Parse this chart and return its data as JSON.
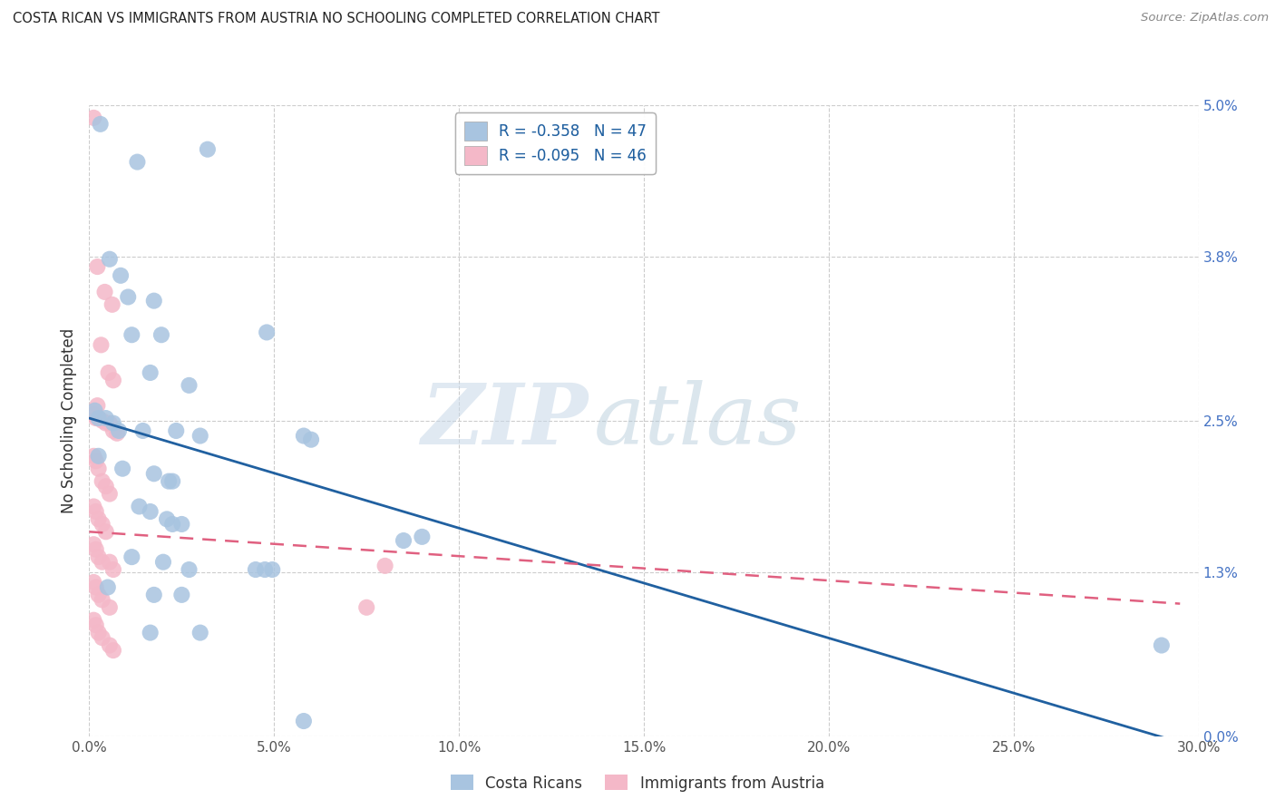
{
  "title": "COSTA RICAN VS IMMIGRANTS FROM AUSTRIA NO SCHOOLING COMPLETED CORRELATION CHART",
  "source": "Source: ZipAtlas.com",
  "ylabel": "No Schooling Completed",
  "xlabel_vals": [
    0.0,
    5.0,
    10.0,
    15.0,
    20.0,
    25.0,
    30.0
  ],
  "ylabel_vals": [
    0.0,
    1.3,
    2.5,
    3.8,
    5.0
  ],
  "xlim": [
    0.0,
    30.0
  ],
  "ylim": [
    0.0,
    5.0
  ],
  "blue_R": "-0.358",
  "blue_N": "47",
  "pink_R": "-0.095",
  "pink_N": "46",
  "blue_color": "#a8c4e0",
  "pink_color": "#f4b8c8",
  "blue_line_color": "#2060a0",
  "pink_line_color": "#e06080",
  "watermark_zip": "ZIP",
  "watermark_atlas": "atlas",
  "background_color": "#ffffff",
  "legend_label_blue": "Costa Ricans",
  "legend_label_pink": "Immigrants from Austria",
  "blue_line": [
    [
      0.0,
      2.52
    ],
    [
      29.5,
      -0.05
    ]
  ],
  "pink_line": [
    [
      0.0,
      1.62
    ],
    [
      29.5,
      1.05
    ]
  ],
  "blue_scatter": [
    [
      0.3,
      4.85
    ],
    [
      1.3,
      4.55
    ],
    [
      3.2,
      4.65
    ],
    [
      0.55,
      3.78
    ],
    [
      0.85,
      3.65
    ],
    [
      1.05,
      3.48
    ],
    [
      1.75,
      3.45
    ],
    [
      1.15,
      3.18
    ],
    [
      1.95,
      3.18
    ],
    [
      4.8,
      3.2
    ],
    [
      1.65,
      2.88
    ],
    [
      2.7,
      2.78
    ],
    [
      0.15,
      2.58
    ],
    [
      0.25,
      2.52
    ],
    [
      0.45,
      2.52
    ],
    [
      0.65,
      2.48
    ],
    [
      0.8,
      2.42
    ],
    [
      1.45,
      2.42
    ],
    [
      2.35,
      2.42
    ],
    [
      3.0,
      2.38
    ],
    [
      5.8,
      2.38
    ],
    [
      0.25,
      2.22
    ],
    [
      0.9,
      2.12
    ],
    [
      1.75,
      2.08
    ],
    [
      2.15,
      2.02
    ],
    [
      2.25,
      2.02
    ],
    [
      1.35,
      1.82
    ],
    [
      1.65,
      1.78
    ],
    [
      2.1,
      1.72
    ],
    [
      2.25,
      1.68
    ],
    [
      2.5,
      1.68
    ],
    [
      4.5,
      1.32
    ],
    [
      4.75,
      1.32
    ],
    [
      4.95,
      1.32
    ],
    [
      1.15,
      1.42
    ],
    [
      2.0,
      1.38
    ],
    [
      2.7,
      1.32
    ],
    [
      0.5,
      1.18
    ],
    [
      1.75,
      1.12
    ],
    [
      2.5,
      1.12
    ],
    [
      1.65,
      0.82
    ],
    [
      3.0,
      0.82
    ],
    [
      6.0,
      2.35
    ],
    [
      9.0,
      1.58
    ],
    [
      8.5,
      1.55
    ],
    [
      29.0,
      0.72
    ],
    [
      5.8,
      0.12
    ]
  ],
  "pink_scatter": [
    [
      0.12,
      4.9
    ],
    [
      0.22,
      3.72
    ],
    [
      0.42,
      3.52
    ],
    [
      0.62,
      3.42
    ],
    [
      0.32,
      3.1
    ],
    [
      0.52,
      2.88
    ],
    [
      0.65,
      2.82
    ],
    [
      0.22,
      2.62
    ],
    [
      0.12,
      2.55
    ],
    [
      0.18,
      2.52
    ],
    [
      0.25,
      2.52
    ],
    [
      0.35,
      2.5
    ],
    [
      0.45,
      2.48
    ],
    [
      0.55,
      2.48
    ],
    [
      0.65,
      2.42
    ],
    [
      0.75,
      2.4
    ],
    [
      0.12,
      2.22
    ],
    [
      0.18,
      2.18
    ],
    [
      0.25,
      2.12
    ],
    [
      0.35,
      2.02
    ],
    [
      0.45,
      1.98
    ],
    [
      0.55,
      1.92
    ],
    [
      0.12,
      1.82
    ],
    [
      0.18,
      1.78
    ],
    [
      0.25,
      1.72
    ],
    [
      0.35,
      1.68
    ],
    [
      0.45,
      1.62
    ],
    [
      0.12,
      1.52
    ],
    [
      0.18,
      1.48
    ],
    [
      0.25,
      1.42
    ],
    [
      0.35,
      1.38
    ],
    [
      0.55,
      1.38
    ],
    [
      0.65,
      1.32
    ],
    [
      0.12,
      1.22
    ],
    [
      0.18,
      1.18
    ],
    [
      0.25,
      1.12
    ],
    [
      0.35,
      1.08
    ],
    [
      0.55,
      1.02
    ],
    [
      7.5,
      1.02
    ],
    [
      0.12,
      0.92
    ],
    [
      0.18,
      0.88
    ],
    [
      0.25,
      0.82
    ],
    [
      0.35,
      0.78
    ],
    [
      0.55,
      0.72
    ],
    [
      0.65,
      0.68
    ],
    [
      8.0,
      1.35
    ]
  ]
}
